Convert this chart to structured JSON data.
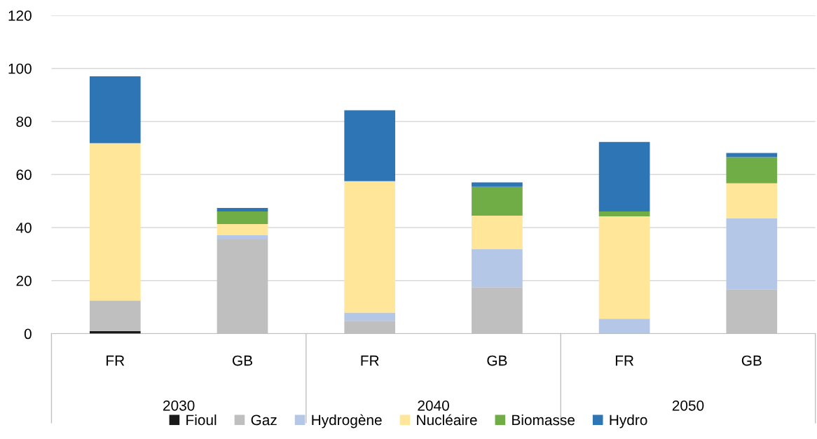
{
  "chart_data": {
    "type": "bar",
    "stacked": true,
    "categories": [
      "FR",
      "GB",
      "FR",
      "GB",
      "FR",
      "GB"
    ],
    "annotations": [
      "2030",
      "2040",
      "2050"
    ],
    "series": [
      {
        "name": "Fioul",
        "color": "#1a1a1a",
        "values": [
          1,
          0,
          0,
          0,
          0,
          0
        ]
      },
      {
        "name": "Gaz",
        "color": "#bfbfbf",
        "values": [
          11.5,
          35.5,
          4.8,
          17.5,
          0,
          16.7
        ]
      },
      {
        "name": "Hydrogène",
        "color": "#b4c7e7",
        "values": [
          0,
          1.6,
          3.1,
          14.3,
          5.6,
          26.7
        ]
      },
      {
        "name": "Nucléaire",
        "color": "#ffe699",
        "values": [
          59.3,
          4.2,
          49.6,
          12.7,
          38.6,
          13.3
        ]
      },
      {
        "name": "Biomasse",
        "color": "#70ad47",
        "values": [
          0,
          4.8,
          0,
          10.9,
          1.9,
          9.8
        ]
      },
      {
        "name": "Hydro",
        "color": "#2e75b6",
        "values": [
          25.2,
          1.3,
          26.7,
          1.6,
          26.2,
          1.6
        ]
      }
    ],
    "ylim": [
      0,
      120
    ],
    "yticks": [
      0,
      20,
      40,
      60,
      80,
      100,
      120
    ],
    "grid": "y",
    "legend": "bottom"
  }
}
